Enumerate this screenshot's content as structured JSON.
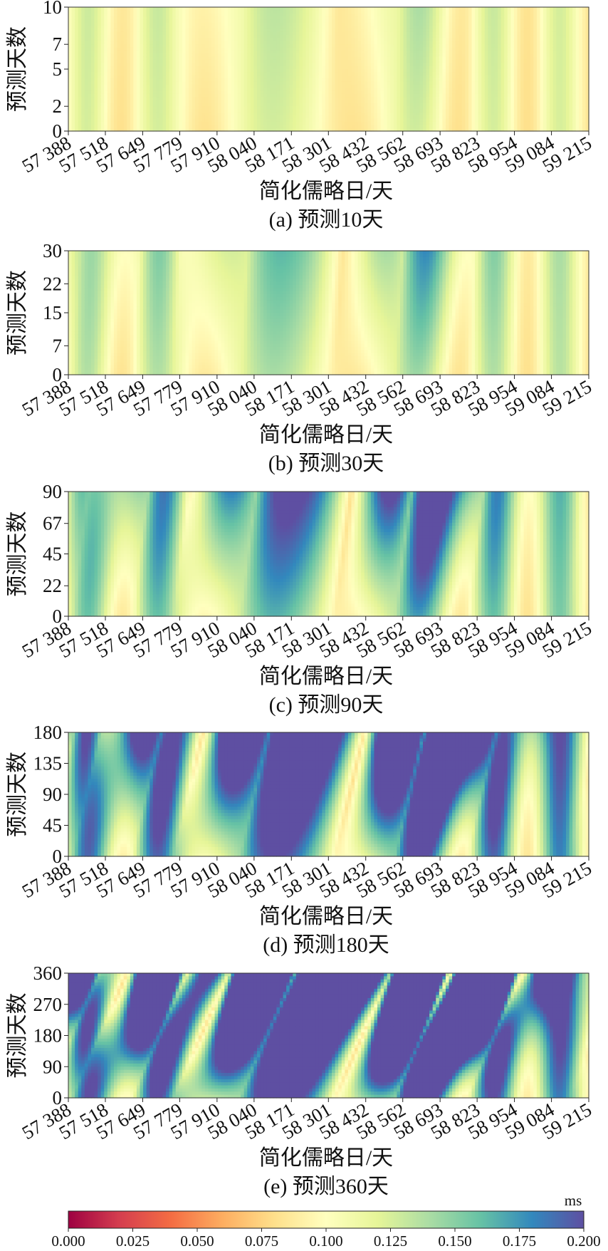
{
  "chart_data": [
    {
      "type": "heatmap",
      "caption": "(a) 预测10天",
      "xlabel": "简化儒略日/天",
      "ylabel": "预测天数",
      "x_ticks": [
        "57 388",
        "57 518",
        "57 649",
        "57 779",
        "57 910",
        "58 040",
        "58 171",
        "58 301",
        "58 432",
        "58 562",
        "58 693",
        "58 823",
        "58 954",
        "59 084",
        "59 215"
      ],
      "y_ticks": [
        "0",
        "2",
        "5",
        "7",
        "10"
      ],
      "ylim": [
        0,
        10
      ],
      "xlim": [
        57388,
        59215
      ]
    },
    {
      "type": "heatmap",
      "caption": "(b) 预测30天",
      "xlabel": "简化儒略日/天",
      "ylabel": "预测天数",
      "x_ticks": [
        "57 388",
        "57 518",
        "57 649",
        "57 779",
        "57 910",
        "58 040",
        "58 171",
        "58 301",
        "58 432",
        "58 562",
        "58 693",
        "58 823",
        "58 954",
        "59 084",
        "59 215"
      ],
      "y_ticks": [
        "0",
        "7",
        "15",
        "22",
        "30"
      ],
      "ylim": [
        0,
        30
      ],
      "xlim": [
        57388,
        59215
      ]
    },
    {
      "type": "heatmap",
      "caption": "(c) 预测90天",
      "xlabel": "简化儒略日/天",
      "ylabel": "预测天数",
      "x_ticks": [
        "57 388",
        "57 518",
        "57 649",
        "57 779",
        "57 910",
        "58 040",
        "58 171",
        "58 301",
        "58 432",
        "58 562",
        "58 693",
        "58 823",
        "58 954",
        "59 084",
        "59 215"
      ],
      "y_ticks": [
        "0",
        "22",
        "45",
        "67",
        "90"
      ],
      "ylim": [
        0,
        90
      ],
      "xlim": [
        57388,
        59215
      ]
    },
    {
      "type": "heatmap",
      "caption": "(d) 预测180天",
      "xlabel": "简化儒略日/天",
      "ylabel": "预测天数",
      "x_ticks": [
        "57 388",
        "57 518",
        "57 649",
        "57 779",
        "57 910",
        "58 040",
        "58 171",
        "58 301",
        "58 432",
        "58 562",
        "58 693",
        "58 823",
        "58 954",
        "59 084",
        "59 215"
      ],
      "y_ticks": [
        "0",
        "45",
        "90",
        "135",
        "180"
      ],
      "ylim": [
        0,
        180
      ],
      "xlim": [
        57388,
        59215
      ]
    },
    {
      "type": "heatmap",
      "caption": "(e) 预测360天",
      "xlabel": "简化儒略日/天",
      "ylabel": "预测天数",
      "x_ticks": [
        "57 388",
        "57 518",
        "57 649",
        "57 779",
        "57 910",
        "58 040",
        "58 171",
        "58 301",
        "58 432",
        "58 562",
        "58 693",
        "58 823",
        "58 954",
        "59 084",
        "59 215"
      ],
      "y_ticks": [
        "0",
        "90",
        "180",
        "270",
        "360"
      ],
      "ylim": [
        0,
        360
      ],
      "xlim": [
        57388,
        59215
      ]
    }
  ],
  "colorbar": {
    "unit": "ms",
    "ticks": [
      "0.000",
      "0.025",
      "0.050",
      "0.075",
      "0.100",
      "0.125",
      "0.150",
      "0.175",
      "0.200"
    ],
    "range": [
      0,
      0.2
    ],
    "colors": [
      "#9e0142",
      "#d53e4f",
      "#f46d43",
      "#fdae61",
      "#fee08b",
      "#ffffbf",
      "#e6f598",
      "#abdda4",
      "#66c2a5",
      "#3288bd",
      "#5e4fa2"
    ]
  }
}
